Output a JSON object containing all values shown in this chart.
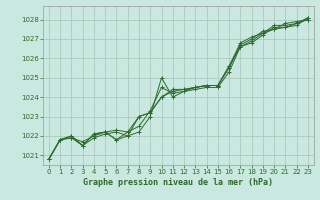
{
  "title": "Graphe pression niveau de la mer (hPa)",
  "bg_color": "#c8e8e0",
  "grid_color": "#b0c8c0",
  "line_color": "#2d6a2d",
  "xlim": [
    -0.5,
    23.5
  ],
  "ylim": [
    1020.5,
    1028.7
  ],
  "yticks": [
    1021,
    1022,
    1023,
    1024,
    1025,
    1026,
    1027,
    1028
  ],
  "xticks": [
    0,
    1,
    2,
    3,
    4,
    5,
    6,
    7,
    8,
    9,
    10,
    11,
    12,
    13,
    14,
    15,
    16,
    17,
    18,
    19,
    20,
    21,
    22,
    23
  ],
  "series": [
    [
      1020.8,
      1021.8,
      1021.9,
      1021.5,
      1021.9,
      1022.1,
      1022.2,
      1022.0,
      1022.2,
      1023.0,
      1025.0,
      1024.0,
      1024.3,
      1024.4,
      1024.5,
      1024.5,
      1025.3,
      1026.6,
      1026.8,
      1027.2,
      1027.6,
      1027.6,
      1027.7,
      1028.1
    ],
    [
      1020.8,
      1021.8,
      1021.9,
      1021.7,
      1022.0,
      1022.2,
      1022.3,
      1022.2,
      1022.5,
      1023.3,
      1024.5,
      1024.2,
      1024.3,
      1024.5,
      1024.6,
      1024.6,
      1025.6,
      1026.6,
      1026.9,
      1027.3,
      1027.7,
      1027.7,
      1027.8,
      1028.1
    ],
    [
      1020.8,
      1021.8,
      1022.0,
      1021.5,
      1022.1,
      1022.2,
      1021.8,
      1022.0,
      1023.0,
      1023.2,
      1024.0,
      1024.3,
      1024.4,
      1024.5,
      1024.6,
      1024.6,
      1025.5,
      1026.7,
      1027.0,
      1027.4,
      1027.5,
      1027.6,
      1027.8,
      1028.0
    ],
    [
      1020.8,
      1021.8,
      1022.0,
      1021.5,
      1022.1,
      1022.2,
      1021.8,
      1022.2,
      1023.0,
      1023.2,
      1024.0,
      1024.4,
      1024.4,
      1024.5,
      1024.6,
      1024.6,
      1025.6,
      1026.8,
      1027.1,
      1027.3,
      1027.5,
      1027.8,
      1027.9,
      1028.0
    ]
  ],
  "title_fontsize": 6.0,
  "tick_fontsize": 5.0
}
